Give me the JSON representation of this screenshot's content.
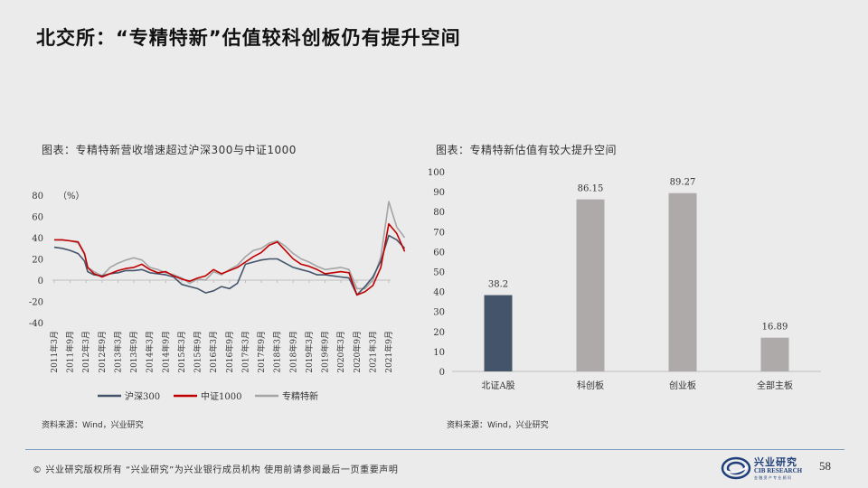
{
  "title": "北交所：“专精特新”估值较科创板仍有提升空间",
  "left_chart": {
    "caption": "图表：专精特新营收增速超过沪深300与中证1000",
    "unit_label": "（%）",
    "source": "资料来源：Wind，兴业研究"
  },
  "right_chart": {
    "caption": "图表：专精特新估值有较大提升空间",
    "source": "资料来源：Wind，兴业研究"
  },
  "footer": {
    "text": "©  兴业研究版权所有   “兴业研究”为兴业银行成员机构   使用前请参阅最后一页重要声明",
    "logo_cn": "兴业研究",
    "logo_en": "CIB RESEARCH",
    "logo_sub": "金 融 资 产 专 业 顾 问",
    "page_number": "58"
  },
  "colors": {
    "hs300": "#44546a",
    "zz1000": "#c00000",
    "zjtx": "#a5a5a5",
    "bar_first": "#44546a",
    "bar_rest": "#aeaaaa",
    "logo_blue": "#1f3f7a"
  },
  "chart_data": [
    {
      "type": "line",
      "x": [
        "2011年3月",
        "2011年9月",
        "2012年3月",
        "2012年9月",
        "2013年3月",
        "2013年9月",
        "2014年3月",
        "2014年9月",
        "2015年3月",
        "2015年9月",
        "2016年3月",
        "2016年9月",
        "2017年3月",
        "2017年9月",
        "2018年3月",
        "2018年9月",
        "2019年3月",
        "2019年9月",
        "2020年3月",
        "2020年9月",
        "2021年3月",
        "2021年9月"
      ],
      "ylim": [
        -40,
        80
      ],
      "yticks": [
        -40,
        -20,
        0,
        20,
        40,
        60,
        80
      ],
      "series": [
        {
          "name": "沪深300",
          "values": [
            [
              0,
              31
            ],
            [
              0.5,
              30
            ],
            [
              1,
              28
            ],
            [
              1.5,
              25
            ],
            [
              1.9,
              18
            ],
            [
              2.1,
              8
            ],
            [
              2.5,
              5
            ],
            [
              3,
              4
            ],
            [
              3.5,
              6
            ],
            [
              4,
              7
            ],
            [
              4.5,
              9
            ],
            [
              5,
              9
            ],
            [
              5.5,
              10
            ],
            [
              6,
              7
            ],
            [
              6.5,
              6
            ],
            [
              7,
              5
            ],
            [
              7.5,
              3
            ],
            [
              8,
              -4
            ],
            [
              8.5,
              -6
            ],
            [
              9,
              -8
            ],
            [
              9.5,
              -12
            ],
            [
              10,
              -10
            ],
            [
              10.5,
              -6
            ],
            [
              11,
              -8
            ],
            [
              11.5,
              -3
            ],
            [
              12,
              15
            ],
            [
              12.5,
              17
            ],
            [
              13,
              19
            ],
            [
              13.5,
              20
            ],
            [
              14,
              20
            ],
            [
              14.5,
              16
            ],
            [
              15,
              12
            ],
            [
              15.5,
              10
            ],
            [
              16,
              8
            ],
            [
              16.5,
              5
            ],
            [
              17,
              5
            ],
            [
              17.5,
              4
            ],
            [
              18,
              3
            ],
            [
              18.5,
              2
            ],
            [
              19,
              -14
            ],
            [
              19.5,
              -6
            ],
            [
              20,
              3
            ],
            [
              20.5,
              18
            ],
            [
              21,
              42
            ],
            [
              21.5,
              38
            ],
            [
              22,
              30
            ]
          ]
        },
        {
          "name": "中证1000",
          "values": [
            [
              0,
              38
            ],
            [
              0.5,
              38
            ],
            [
              1,
              37
            ],
            [
              1.5,
              36
            ],
            [
              1.9,
              25
            ],
            [
              2.1,
              12
            ],
            [
              2.5,
              6
            ],
            [
              3,
              3
            ],
            [
              3.5,
              6
            ],
            [
              4,
              9
            ],
            [
              4.5,
              11
            ],
            [
              5,
              12
            ],
            [
              5.5,
              15
            ],
            [
              6,
              10
            ],
            [
              6.5,
              7
            ],
            [
              7,
              8
            ],
            [
              7.5,
              4
            ],
            [
              8,
              1
            ],
            [
              8.5,
              -1
            ],
            [
              9,
              2
            ],
            [
              9.5,
              4
            ],
            [
              10,
              10
            ],
            [
              10.5,
              6
            ],
            [
              11,
              9
            ],
            [
              11.5,
              12
            ],
            [
              12,
              17
            ],
            [
              12.5,
              22
            ],
            [
              13,
              26
            ],
            [
              13.5,
              33
            ],
            [
              14,
              36
            ],
            [
              14.5,
              28
            ],
            [
              15,
              20
            ],
            [
              15.5,
              15
            ],
            [
              16,
              13
            ],
            [
              16.5,
              10
            ],
            [
              17,
              6
            ],
            [
              17.5,
              7
            ],
            [
              18,
              8
            ],
            [
              18.5,
              7
            ],
            [
              19,
              -14
            ],
            [
              19.5,
              -11
            ],
            [
              20,
              -5
            ],
            [
              20.5,
              12
            ],
            [
              21,
              53
            ],
            [
              21.5,
              44
            ],
            [
              22,
              27
            ]
          ]
        },
        {
          "name": "专精特新",
          "values": [
            [
              0,
              38
            ],
            [
              0.5,
              38
            ],
            [
              1,
              37
            ],
            [
              1.5,
              35
            ],
            [
              1.9,
              24
            ],
            [
              2.1,
              12
            ],
            [
              2.5,
              8
            ],
            [
              3,
              4
            ],
            [
              3.5,
              12
            ],
            [
              4,
              16
            ],
            [
              4.5,
              19
            ],
            [
              5,
              21
            ],
            [
              5.5,
              19
            ],
            [
              6,
              12
            ],
            [
              6.5,
              10
            ],
            [
              7,
              7
            ],
            [
              7.5,
              5
            ],
            [
              8,
              2
            ],
            [
              8.5,
              -3
            ],
            [
              9,
              1
            ],
            [
              9.5,
              0
            ],
            [
              10,
              8
            ],
            [
              10.5,
              5
            ],
            [
              11,
              10
            ],
            [
              11.5,
              14
            ],
            [
              12,
              22
            ],
            [
              12.5,
              28
            ],
            [
              13,
              30
            ],
            [
              13.5,
              35
            ],
            [
              14,
              37
            ],
            [
              14.5,
              32
            ],
            [
              15,
              25
            ],
            [
              15.5,
              20
            ],
            [
              16,
              17
            ],
            [
              16.5,
              13
            ],
            [
              17,
              10
            ],
            [
              17.5,
              11
            ],
            [
              18,
              12
            ],
            [
              18.5,
              10
            ],
            [
              19,
              -8
            ],
            [
              19.5,
              -8
            ],
            [
              20,
              0
            ],
            [
              20.5,
              22
            ],
            [
              21,
              74
            ],
            [
              21.5,
              50
            ],
            [
              22,
              40
            ]
          ]
        }
      ],
      "legend_position": "bottom"
    },
    {
      "type": "bar",
      "categories": [
        "北证A股",
        "科创板",
        "创业板",
        "全部主板"
      ],
      "values": [
        38.2,
        86.15,
        89.27,
        16.89
      ],
      "labels": [
        "38.2",
        "86.15",
        "89.27",
        "16.89"
      ],
      "ylim": [
        0,
        100
      ],
      "yticks": [
        0,
        10,
        20,
        30,
        40,
        50,
        60,
        70,
        80,
        90,
        100
      ]
    }
  ]
}
